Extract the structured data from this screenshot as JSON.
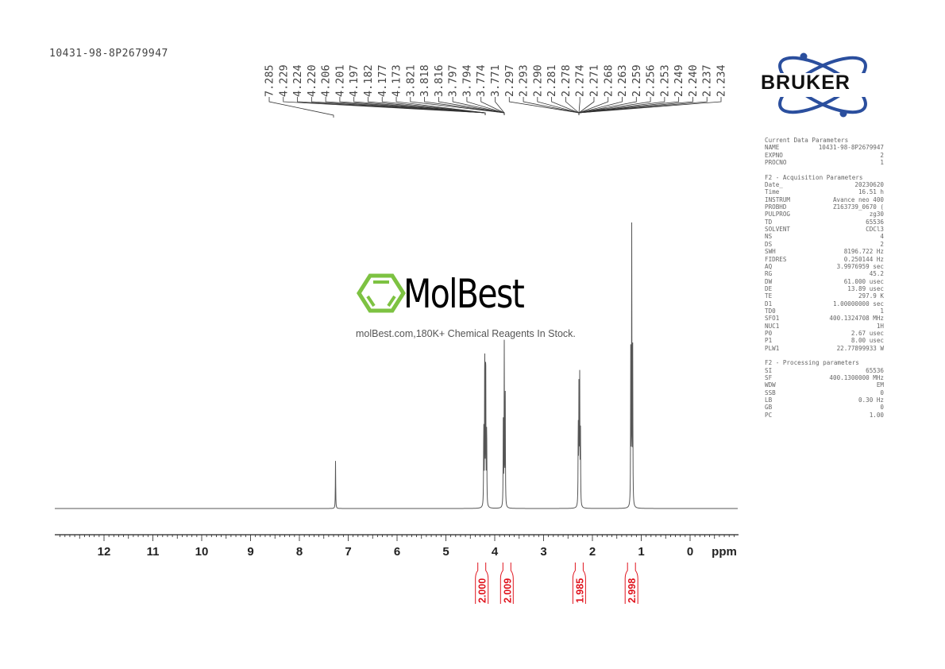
{
  "title": "10431-98-8P2679947",
  "logo": {
    "bruker": "BRUKER",
    "molbest": "MolBest",
    "molbest_tagline": "molBest.com,180K+ Chemical Reagents In Stock."
  },
  "colors": {
    "spectrum": "#555555",
    "integral": "#e0141e",
    "molbest_green": "#7dc242",
    "bruker_blue": "#2b4f9e"
  },
  "parameters": [
    {
      "section": "Current Data Parameters",
      "rows": [
        [
          "NAME",
          "10431-98-8P2679947"
        ],
        [
          "EXPNO",
          "2"
        ],
        [
          "PROCNO",
          "1"
        ]
      ]
    },
    {
      "section": "F2 - Acquisition Parameters",
      "rows": [
        [
          "Date_",
          "20230620"
        ],
        [
          "Time",
          "16.51 h"
        ],
        [
          "INSTRUM",
          "Avance neo 400"
        ],
        [
          "PROBHD",
          "Z163739_0670 ("
        ],
        [
          "PULPROG",
          "zg30"
        ],
        [
          "TD",
          "65536"
        ],
        [
          "SOLVENT",
          "CDCl3"
        ],
        [
          "NS",
          "4"
        ],
        [
          "DS",
          "2"
        ],
        [
          "SWH",
          "8196.722 Hz"
        ],
        [
          "FIDRES",
          "0.250144 Hz"
        ],
        [
          "AQ",
          "3.9976959 sec"
        ],
        [
          "RG",
          "45.2"
        ],
        [
          "DW",
          "61.000 usec"
        ],
        [
          "DE",
          "13.89 usec"
        ],
        [
          "TE",
          "297.9 K"
        ],
        [
          "D1",
          "1.00000000 sec"
        ],
        [
          "TD0",
          "1"
        ],
        [
          "SFO1",
          "400.1324708 MHz"
        ],
        [
          "NUC1",
          "1H"
        ],
        [
          "P0",
          "2.67 usec"
        ],
        [
          "P1",
          "8.00 usec"
        ],
        [
          "PLW1",
          "22.77899933 W"
        ]
      ]
    },
    {
      "section": "F2 - Processing parameters",
      "rows": [
        [
          "SI",
          "65536"
        ],
        [
          "SF",
          "400.1300000 MHz"
        ],
        [
          "WDW",
          "EM"
        ],
        [
          "SSB",
          "0"
        ],
        [
          "LB",
          "0.30 Hz"
        ],
        [
          "GB",
          "0"
        ],
        [
          "PC",
          "1.00"
        ]
      ]
    }
  ],
  "chart_data": {
    "type": "line",
    "xlabel": "ppm",
    "xlim": [
      13,
      -1
    ],
    "x_reversed": true,
    "x_ticks": [
      "12",
      "11",
      "10",
      "9",
      "8",
      "7",
      "6",
      "5",
      "4",
      "3",
      "2",
      "1",
      "0"
    ],
    "grid": false,
    "peak_labels": [
      "7.285",
      "4.229",
      "4.224",
      "4.220",
      "4.206",
      "4.201",
      "4.197",
      "4.182",
      "4.177",
      "4.173",
      "3.821",
      "3.818",
      "3.816",
      "3.797",
      "3.794",
      "3.774",
      "3.771",
      "2.297",
      "2.293",
      "2.290",
      "2.281",
      "2.278",
      "2.274",
      "2.271",
      "2.268",
      "2.263",
      "2.259",
      "2.256",
      "2.253",
      "2.249",
      "2.240",
      "2.237",
      "2.234"
    ],
    "peaks": [
      {
        "ppm": 7.26,
        "intensity": 0.17
      },
      {
        "ppm": 4.225,
        "intensity": 0.3
      },
      {
        "ppm": 4.205,
        "intensity": 0.61
      },
      {
        "ppm": 4.185,
        "intensity": 0.6
      },
      {
        "ppm": 4.165,
        "intensity": 0.3
      },
      {
        "ppm": 3.825,
        "intensity": 0.3
      },
      {
        "ppm": 3.805,
        "intensity": 0.575
      },
      {
        "ppm": 3.785,
        "intensity": 0.4
      },
      {
        "ppm": 2.29,
        "intensity": 0.3
      },
      {
        "ppm": 2.275,
        "intensity": 0.46
      },
      {
        "ppm": 2.26,
        "intensity": 0.44
      },
      {
        "ppm": 2.245,
        "intensity": 0.28
      },
      {
        "ppm": 1.215,
        "intensity": 0.55
      },
      {
        "ppm": 1.195,
        "intensity": 1.0
      },
      {
        "ppm": 1.175,
        "intensity": 0.55
      }
    ],
    "integrals": [
      {
        "ppm": 4.2,
        "value": "2.000"
      },
      {
        "ppm": 3.8,
        "value": "2.009"
      },
      {
        "ppm": 2.27,
        "value": "1.985"
      },
      {
        "ppm": 1.2,
        "value": "2.998"
      }
    ]
  }
}
